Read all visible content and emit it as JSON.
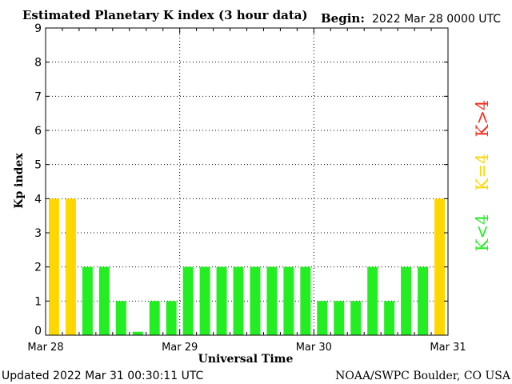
{
  "header": {
    "title": "Estimated Planetary K index (3 hour data)",
    "begin_label": "Begin:",
    "begin_value": "2022 Mar 28 0000 UTC"
  },
  "footer": {
    "updated": "Updated 2022 Mar 31 00:30:11 UTC",
    "credit": "NOAA/SWPC Boulder, CO USA"
  },
  "legend": {
    "high": "K>4",
    "equal": "K=4",
    "low": "K<4"
  },
  "colors": {
    "low": "#22ee22",
    "equal": "#ffd700",
    "high": "#ff2a1a",
    "axis": "#000000"
  },
  "chart_data": {
    "type": "bar",
    "title": "Estimated Planetary K index (3 hour data)",
    "xlabel": "Universal Time",
    "ylabel": "Kp index",
    "ylim": [
      0,
      9
    ],
    "yticks": [
      "0",
      "1",
      "2",
      "3",
      "4",
      "5",
      "6",
      "7",
      "8",
      "9"
    ],
    "xticks": [
      "Mar 28",
      "Mar 29",
      "Mar 30",
      "Mar 31"
    ],
    "interval_hours": 3,
    "grid": "dotted",
    "values": [
      4,
      4,
      2,
      2,
      1,
      0.1,
      1,
      1,
      2,
      2,
      2,
      2,
      2,
      2,
      2,
      2,
      1,
      1,
      1,
      2,
      1,
      2,
      2,
      4
    ]
  }
}
